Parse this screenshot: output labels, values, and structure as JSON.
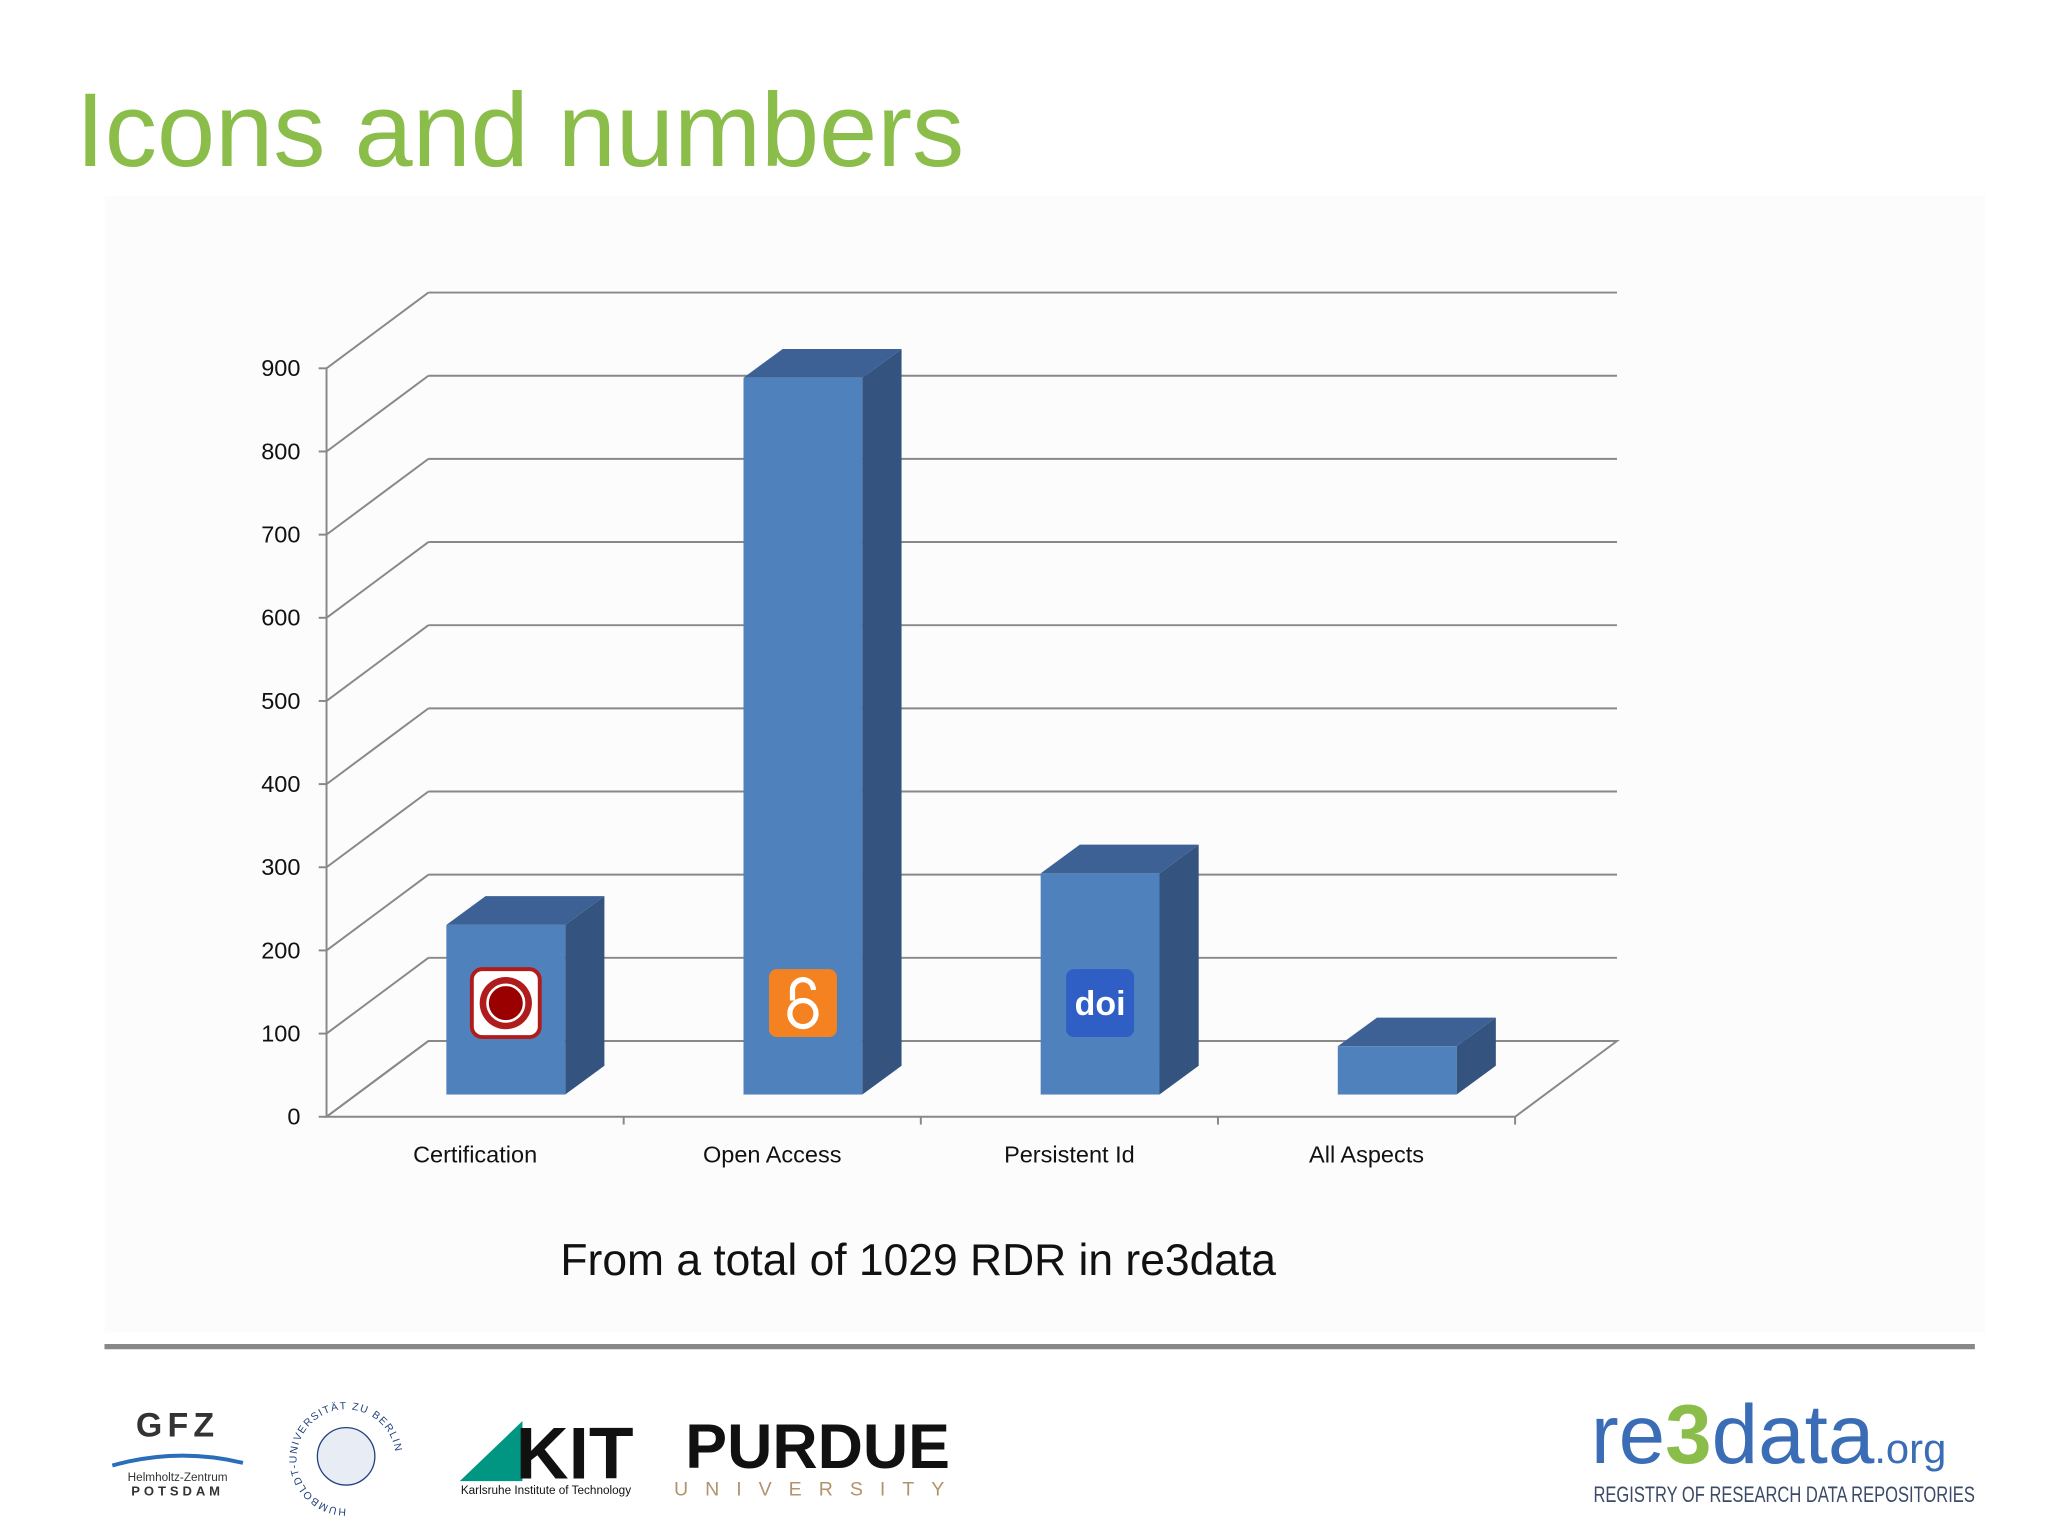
{
  "chart_data": {
    "type": "bar3d",
    "title": "Icons and numbers",
    "caption": "From a total of 1029 RDR in re3data",
    "categories": [
      "Certification",
      "Open Access",
      "Persistent Id",
      "All Aspects"
    ],
    "values": [
      204,
      862,
      266,
      58
    ],
    "color": "#4f81bd",
    "ylim": [
      0,
      900
    ],
    "yticks": [
      0,
      100,
      200,
      300,
      400,
      500,
      600,
      700,
      800,
      900
    ],
    "grid": true
  },
  "icons": {
    "doi": "doi"
  },
  "footer": {
    "gfz": "GFZ",
    "gfz_sub1": "Helmholtz-Zentrum",
    "gfz_sub2": "POTSDAM",
    "hu": "HUMBOLDT-UNIVERSITÄT ZU BERLIN",
    "kit": "KIT",
    "kit_sub": "Karlsruhe Institute of Technology",
    "purdue": "PURDUE",
    "purdue_sub": "UNIVERSITY",
    "re3data": [
      "re",
      "3",
      "data",
      ".org"
    ],
    "re3data_sub": "REGISTRY OF RESEARCH DATA REPOSITORIES"
  }
}
